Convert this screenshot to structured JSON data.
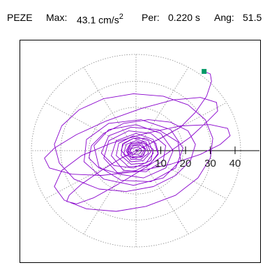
{
  "header": {
    "station": "PEZE",
    "max_label": "Max:",
    "max_value": "43.1",
    "max_unit": "cm/s",
    "max_unit_exp": "2",
    "per_label": "Per:",
    "per_value": "0.220 s",
    "ang_label": "Ang:",
    "ang_value": "51.5"
  },
  "colors": {
    "trace": "#8800cc",
    "marker": "#009966",
    "grid": "#888888",
    "axis": "#000000"
  },
  "chart_data": {
    "type": "polar-orbit",
    "radial_ticks": [
      "10",
      "20",
      "30",
      "40"
    ],
    "radial_tick_values": [
      10,
      20,
      30,
      40
    ],
    "rlim": [
      0,
      43.1
    ],
    "grid": true,
    "series": [
      {
        "points": [
          [
            27.5,
            32.0
          ],
          [
            30.0,
            31.0
          ],
          [
            30.5,
            28.0
          ],
          [
            28.5,
            22.0
          ],
          [
            24.0,
            15.5
          ],
          [
            18.0,
            9.5
          ],
          [
            10.0,
            5.0
          ],
          [
            2.0,
            1.0
          ],
          [
            -6.0,
            -3.0
          ],
          [
            -14.0,
            -8.0
          ],
          [
            -22.0,
            -13.5
          ],
          [
            -27.0,
            -18.0
          ],
          [
            -28.0,
            -20.5
          ],
          [
            -24.0,
            -21.5
          ],
          [
            -17.0,
            -19.0
          ],
          [
            -8.0,
            -14.0
          ],
          [
            2.0,
            -8.0
          ],
          [
            12.0,
            -1.5
          ],
          [
            22.0,
            5.5
          ],
          [
            29.0,
            12.0
          ],
          [
            33.0,
            16.0
          ],
          [
            32.5,
            19.5
          ],
          [
            26.0,
            21.5
          ],
          [
            15.0,
            20.5
          ],
          [
            2.0,
            17.0
          ],
          [
            -12.0,
            12.0
          ],
          [
            -24.0,
            6.5
          ],
          [
            -33.0,
            1.0
          ],
          [
            -37.0,
            -3.0
          ],
          [
            -35.0,
            -7.0
          ],
          [
            -26.0,
            -9.5
          ],
          [
            -14.0,
            -10.0
          ],
          [
            0.0,
            -8.5
          ],
          [
            14.0,
            -5.5
          ],
          [
            26.0,
            -1.5
          ],
          [
            34.0,
            2.5
          ],
          [
            38.0,
            6.0
          ],
          [
            37.0,
            9.0
          ],
          [
            30.0,
            10.5
          ],
          [
            18.0,
            10.0
          ],
          [
            4.0,
            7.0
          ],
          [
            -10.0,
            3.0
          ],
          [
            -22.0,
            -2.0
          ],
          [
            -30.0,
            -8.0
          ],
          [
            -33.0,
            -14.5
          ],
          [
            -29.0,
            -20.0
          ],
          [
            -20.0,
            -23.5
          ],
          [
            -8.0,
            -24.5
          ],
          [
            4.0,
            -22.5
          ],
          [
            16.0,
            -18.0
          ],
          [
            25.0,
            -11.0
          ],
          [
            30.0,
            -3.0
          ],
          [
            31.0,
            5.0
          ],
          [
            28.0,
            12.5
          ],
          [
            21.0,
            18.5
          ],
          [
            11.0,
            22.0
          ],
          [
            -1.0,
            23.0
          ],
          [
            -13.0,
            21.0
          ],
          [
            -23.0,
            16.5
          ],
          [
            -30.0,
            10.0
          ],
          [
            -33.0,
            2.5
          ],
          [
            -31.0,
            -5.0
          ],
          [
            -25.0,
            -11.5
          ],
          [
            -15.0,
            -15.5
          ],
          [
            -4.0,
            -16.5
          ],
          [
            7.0,
            -14.5
          ],
          [
            16.0,
            -10.0
          ],
          [
            22.0,
            -4.0
          ],
          [
            24.0,
            2.5
          ],
          [
            21.0,
            8.0
          ],
          [
            14.0,
            11.5
          ],
          [
            5.0,
            12.5
          ],
          [
            -5.0,
            11.0
          ],
          [
            -13.0,
            7.0
          ],
          [
            -18.0,
            2.0
          ],
          [
            -19.0,
            -3.0
          ],
          [
            -15.0,
            -7.0
          ],
          [
            -8.0,
            -9.0
          ],
          [
            0.0,
            -8.0
          ],
          [
            6.0,
            -5.0
          ],
          [
            9.0,
            -1.0
          ],
          [
            8.0,
            3.0
          ],
          [
            4.0,
            5.0
          ],
          [
            -1.0,
            5.0
          ],
          [
            -5.0,
            3.0
          ],
          [
            -6.0,
            0.0
          ],
          [
            -4.0,
            -2.0
          ],
          [
            0.0,
            -3.0
          ],
          [
            3.0,
            -2.0
          ],
          [
            4.0,
            0.5
          ],
          [
            2.0,
            2.0
          ],
          [
            -1.0,
            2.0
          ],
          [
            -2.5,
            0.5
          ],
          [
            -1.5,
            -1.5
          ],
          [
            1.0,
            -1.5
          ],
          [
            2.5,
            0.0
          ],
          [
            1.0,
            1.5
          ],
          [
            -1.5,
            1.0
          ],
          [
            -3.0,
            -0.5
          ],
          [
            -1.0,
            -2.5
          ],
          [
            2.0,
            -2.0
          ],
          [
            3.5,
            0.5
          ],
          [
            1.5,
            2.5
          ],
          [
            -2.0,
            2.0
          ],
          [
            -3.5,
            -0.5
          ],
          [
            -1.5,
            -3.0
          ],
          [
            2.5,
            -2.5
          ],
          [
            4.0,
            0.5
          ],
          [
            2.0,
            3.0
          ],
          [
            -2.5,
            2.5
          ],
          [
            -4.0,
            0.0
          ],
          [
            -2.0,
            -3.5
          ],
          [
            2.0,
            -3.5
          ],
          [
            5.0,
            -1.0
          ],
          [
            4.0,
            2.5
          ],
          [
            0.0,
            4.0
          ],
          [
            -4.0,
            2.5
          ],
          [
            -5.0,
            -1.5
          ],
          [
            -2.0,
            -4.5
          ],
          [
            3.0,
            -4.0
          ],
          [
            6.0,
            -0.5
          ],
          [
            4.0,
            3.5
          ],
          [
            -1.0,
            5.0
          ],
          [
            -5.5,
            2.5
          ],
          [
            -6.0,
            -2.0
          ],
          [
            -2.0,
            -5.5
          ],
          [
            4.0,
            -5.0
          ],
          [
            7.0,
            -1.0
          ],
          [
            5.0,
            4.0
          ],
          [
            -1.0,
            6.0
          ],
          [
            -7.0,
            3.0
          ],
          [
            -8.0,
            -2.0
          ],
          [
            -3.0,
            -6.5
          ],
          [
            5.0,
            -6.0
          ],
          [
            9.0,
            -1.5
          ],
          [
            7.0,
            4.5
          ],
          [
            0.0,
            7.0
          ],
          [
            -8.0,
            4.0
          ],
          [
            -10.0,
            -2.0
          ],
          [
            -5.0,
            -8.0
          ],
          [
            4.0,
            -8.5
          ],
          [
            11.0,
            -4.0
          ],
          [
            12.0,
            2.0
          ],
          [
            6.0,
            7.0
          ],
          [
            -3.0,
            8.0
          ],
          [
            -11.0,
            4.0
          ],
          [
            -13.0,
            -3.0
          ],
          [
            -7.0,
            -9.5
          ],
          [
            3.0,
            -11.0
          ],
          [
            12.0,
            -7.0
          ],
          [
            15.0,
            0.0
          ],
          [
            10.0,
            7.0
          ],
          [
            0.0,
            10.5
          ],
          [
            -11.0,
            8.5
          ],
          [
            -17.0,
            2.0
          ],
          [
            -15.0,
            -6.5
          ],
          [
            -6.0,
            -12.0
          ],
          [
            6.0,
            -12.5
          ],
          [
            16.0,
            -7.0
          ],
          [
            19.0,
            1.0
          ],
          [
            14.0,
            8.5
          ],
          [
            2.0,
            12.5
          ],
          [
            -11.0,
            11.0
          ],
          [
            -20.0,
            4.5
          ],
          [
            -21.0,
            -4.5
          ],
          [
            -13.0,
            -11.5
          ],
          [
            -1.0,
            -14.0
          ],
          [
            11.0,
            -11.0
          ],
          [
            18.0,
            -4.0
          ],
          [
            17.0,
            3.5
          ],
          [
            9.0,
            8.5
          ],
          [
            -2.0,
            9.5
          ],
          [
            -11.0,
            6.0
          ],
          [
            -14.0,
            -1.0
          ],
          [
            -9.0,
            -6.0
          ],
          [
            -1.0,
            -7.0
          ],
          [
            6.0,
            -4.0
          ],
          [
            7.0,
            0.5
          ],
          [
            3.0,
            3.5
          ],
          [
            -2.0,
            3.0
          ],
          [
            -3.5,
            0.0
          ],
          [
            -1.0,
            -1.5
          ],
          [
            1.0,
            0.0
          ],
          [
            0.0,
            0.5
          ],
          [
            0.0,
            0.0
          ]
        ]
      }
    ],
    "marker_point": [
      27.5,
      32.0
    ]
  }
}
